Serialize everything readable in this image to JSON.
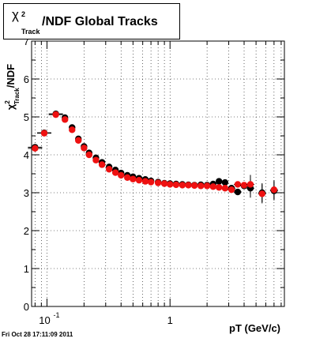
{
  "title": {
    "chi": "χ",
    "sup": "2",
    "sub": "Track",
    "main": "/NDF  Global Tracks"
  },
  "y_axis_label": {
    "chi": "χ",
    "sup": "2",
    "sub": "Track",
    "tail": "/NDF"
  },
  "x_axis_label": "pT (GeV/c)",
  "timestamp": "Fri Oct 28 17:11:09 2011",
  "chart_data": {
    "type": "scatter",
    "x_scale": "log",
    "xlim": [
      0.075,
      8.5
    ],
    "ylim": [
      0,
      7
    ],
    "grid": true,
    "x_tick_labels": [
      {
        "value": 0.1,
        "base": "10",
        "exp": "-1"
      },
      {
        "value": 1,
        "label": "1"
      }
    ],
    "y_tick_labels": [
      "0",
      "1",
      "2",
      "3",
      "4",
      "5",
      "6",
      "7"
    ],
    "colors": {
      "black_series": "#000000",
      "red_series": "#ee1111"
    },
    "series": [
      {
        "color": "black",
        "x": [
          0.08,
          0.095,
          0.118,
          0.14,
          0.16,
          0.18,
          0.2,
          0.22,
          0.25,
          0.28,
          0.32,
          0.36,
          0.4,
          0.45,
          0.5,
          0.56,
          0.63,
          0.7,
          0.8,
          0.9,
          1.0,
          1.12,
          1.26,
          1.41,
          1.58,
          1.78,
          2.0,
          2.24,
          2.5,
          2.8,
          3.16,
          3.55,
          4.0,
          4.5,
          5.6,
          7.0
        ],
        "y": [
          4.2,
          4.58,
          5.08,
          4.98,
          4.72,
          4.42,
          4.22,
          4.05,
          3.92,
          3.8,
          3.68,
          3.6,
          3.52,
          3.46,
          3.42,
          3.38,
          3.35,
          3.31,
          3.28,
          3.25,
          3.24,
          3.23,
          3.22,
          3.21,
          3.2,
          3.21,
          3.2,
          3.23,
          3.3,
          3.27,
          3.12,
          3.02,
          3.18,
          3.12,
          3.0,
          3.05
        ]
      },
      {
        "color": "red",
        "x": [
          0.08,
          0.095,
          0.118,
          0.14,
          0.16,
          0.18,
          0.2,
          0.22,
          0.25,
          0.28,
          0.32,
          0.36,
          0.4,
          0.45,
          0.5,
          0.56,
          0.63,
          0.7,
          0.8,
          0.9,
          1.0,
          1.12,
          1.26,
          1.41,
          1.58,
          1.78,
          2.0,
          2.24,
          2.5,
          2.8,
          3.16,
          3.55,
          4.0,
          4.5,
          5.6,
          7.0
        ],
        "y": [
          4.17,
          4.57,
          5.06,
          4.93,
          4.66,
          4.38,
          4.18,
          4.0,
          3.86,
          3.74,
          3.62,
          3.53,
          3.46,
          3.4,
          3.36,
          3.33,
          3.3,
          3.28,
          3.26,
          3.24,
          3.22,
          3.21,
          3.2,
          3.2,
          3.19,
          3.18,
          3.18,
          3.16,
          3.14,
          3.12,
          3.08,
          3.22,
          3.2,
          3.22,
          2.97,
          3.08
        ]
      }
    ]
  }
}
